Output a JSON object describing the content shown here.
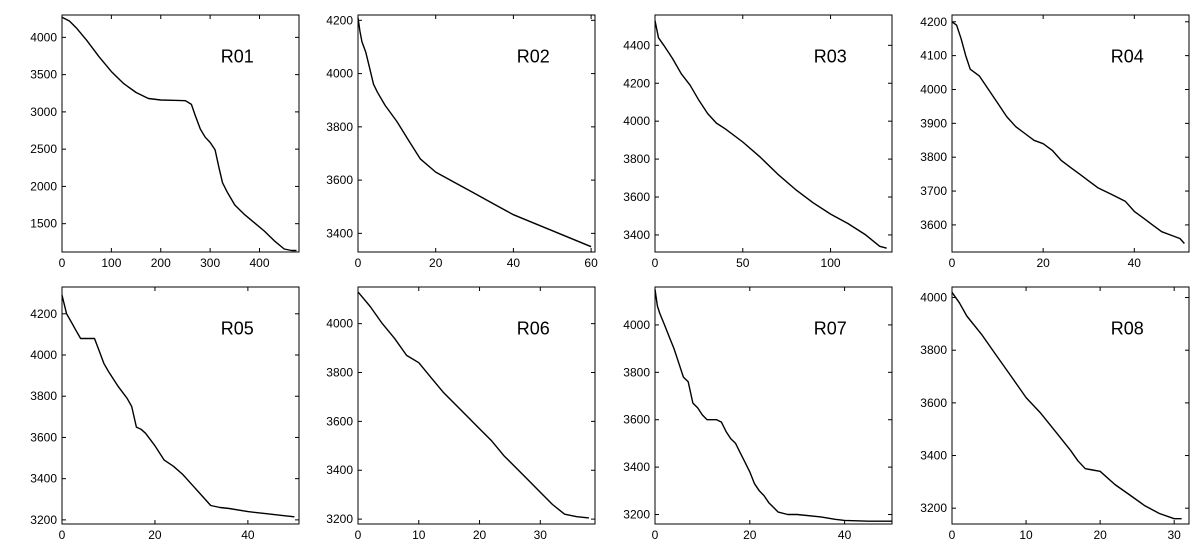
{
  "chart_data": [
    {
      "type": "line",
      "label": "R01",
      "xlim": [
        0,
        480
      ],
      "ylim": [
        1120,
        4300
      ],
      "xticks": [
        0,
        100,
        200,
        300,
        400
      ],
      "yticks": [
        1500,
        2000,
        2500,
        3000,
        3500,
        4000
      ],
      "series": [
        {
          "x": [
            0,
            15,
            30,
            50,
            75,
            100,
            125,
            150,
            175,
            200,
            225,
            250,
            262,
            270,
            280,
            290,
            300,
            310,
            318,
            325,
            335,
            350,
            370,
            390,
            410,
            430,
            450,
            465,
            475
          ],
          "y": [
            4270,
            4220,
            4120,
            3960,
            3740,
            3540,
            3380,
            3260,
            3180,
            3160,
            3155,
            3150,
            3100,
            2950,
            2770,
            2660,
            2590,
            2490,
            2250,
            2050,
            1920,
            1750,
            1620,
            1510,
            1400,
            1270,
            1160,
            1140,
            1140
          ]
        }
      ]
    },
    {
      "type": "line",
      "label": "R02",
      "xlim": [
        0,
        61
      ],
      "ylim": [
        3330,
        4220
      ],
      "xticks": [
        0,
        20,
        40,
        60
      ],
      "yticks": [
        3400,
        3600,
        3800,
        4000,
        4200
      ],
      "series": [
        {
          "x": [
            0,
            0.5,
            1,
            2,
            3,
            4,
            5,
            7,
            10,
            13,
            16,
            20,
            25,
            30,
            35,
            40,
            45,
            50,
            55,
            60
          ],
          "y": [
            4210,
            4160,
            4120,
            4080,
            4020,
            3960,
            3930,
            3880,
            3820,
            3750,
            3680,
            3630,
            3590,
            3550,
            3510,
            3470,
            3440,
            3410,
            3380,
            3350
          ]
        }
      ]
    },
    {
      "type": "line",
      "label": "R03",
      "xlim": [
        0,
        135
      ],
      "ylim": [
        3310,
        4560
      ],
      "xticks": [
        0,
        50,
        100
      ],
      "yticks": [
        3400,
        3600,
        3800,
        4000,
        4200,
        4400
      ],
      "series": [
        {
          "x": [
            0,
            2,
            5,
            10,
            15,
            20,
            25,
            30,
            35,
            40,
            50,
            60,
            70,
            80,
            90,
            100,
            110,
            120,
            128,
            132
          ],
          "y": [
            4530,
            4440,
            4400,
            4330,
            4250,
            4190,
            4110,
            4040,
            3990,
            3960,
            3890,
            3810,
            3720,
            3640,
            3570,
            3510,
            3460,
            3400,
            3340,
            3330
          ]
        }
      ]
    },
    {
      "type": "line",
      "label": "R04",
      "xlim": [
        0,
        52
      ],
      "ylim": [
        3520,
        4220
      ],
      "xticks": [
        0,
        20,
        40
      ],
      "yticks": [
        3600,
        3700,
        3800,
        3900,
        4000,
        4100,
        4200
      ],
      "series": [
        {
          "x": [
            0,
            1,
            2,
            3,
            4,
            6,
            8,
            10,
            12,
            14,
            16,
            18,
            20,
            22,
            24,
            26,
            28,
            30,
            32,
            35,
            38,
            40,
            42,
            44,
            46,
            48,
            50,
            51
          ],
          "y": [
            4200,
            4190,
            4150,
            4100,
            4060,
            4040,
            4000,
            3960,
            3920,
            3890,
            3870,
            3850,
            3840,
            3820,
            3790,
            3770,
            3750,
            3730,
            3710,
            3690,
            3670,
            3640,
            3620,
            3600,
            3580,
            3570,
            3560,
            3545
          ]
        }
      ]
    },
    {
      "type": "line",
      "label": "R05",
      "xlim": [
        0,
        51
      ],
      "ylim": [
        3180,
        4330
      ],
      "xticks": [
        0,
        20,
        40
      ],
      "yticks": [
        3200,
        3400,
        3600,
        3800,
        4000,
        4200
      ],
      "series": [
        {
          "x": [
            0,
            1,
            2,
            3,
            4,
            6,
            7,
            8,
            9,
            10,
            12,
            14,
            15,
            16,
            17,
            18,
            20,
            22,
            24,
            26,
            28,
            30,
            32,
            34,
            36,
            40,
            44,
            48,
            50
          ],
          "y": [
            4290,
            4200,
            4160,
            4120,
            4080,
            4080,
            4080,
            4020,
            3960,
            3920,
            3850,
            3790,
            3750,
            3650,
            3640,
            3620,
            3560,
            3490,
            3460,
            3420,
            3370,
            3320,
            3270,
            3260,
            3255,
            3240,
            3230,
            3220,
            3215
          ]
        }
      ]
    },
    {
      "type": "line",
      "label": "R06",
      "xlim": [
        0,
        39
      ],
      "ylim": [
        3180,
        4150
      ],
      "xticks": [
        0,
        10,
        20,
        30
      ],
      "yticks": [
        3200,
        3400,
        3600,
        3800,
        4000
      ],
      "series": [
        {
          "x": [
            0,
            1,
            2,
            4,
            6,
            8,
            10,
            12,
            14,
            16,
            18,
            20,
            22,
            24,
            26,
            28,
            30,
            32,
            34,
            36,
            38
          ],
          "y": [
            4130,
            4100,
            4070,
            4000,
            3940,
            3870,
            3840,
            3780,
            3720,
            3670,
            3620,
            3570,
            3520,
            3460,
            3410,
            3360,
            3310,
            3260,
            3220,
            3210,
            3205
          ]
        }
      ]
    },
    {
      "type": "line",
      "label": "R07",
      "xlim": [
        0,
        50
      ],
      "ylim": [
        3160,
        4160
      ],
      "xticks": [
        0,
        20,
        40
      ],
      "yticks": [
        3200,
        3400,
        3600,
        3800,
        4000
      ],
      "series": [
        {
          "x": [
            0,
            0.5,
            1,
            2,
            3,
            4,
            5,
            6,
            7,
            8,
            9,
            10,
            11,
            12,
            13,
            14,
            15,
            16,
            17,
            18,
            19,
            20,
            21,
            22,
            23,
            24,
            25,
            26,
            28,
            30,
            35,
            38,
            40,
            45,
            50
          ],
          "y": [
            4150,
            4080,
            4050,
            4000,
            3950,
            3900,
            3840,
            3780,
            3760,
            3670,
            3650,
            3620,
            3600,
            3600,
            3600,
            3590,
            3550,
            3520,
            3500,
            3460,
            3420,
            3380,
            3330,
            3300,
            3280,
            3250,
            3230,
            3210,
            3200,
            3200,
            3190,
            3180,
            3175,
            3172,
            3172
          ]
        }
      ]
    },
    {
      "type": "line",
      "label": "R08",
      "xlim": [
        0,
        32
      ],
      "ylim": [
        3140,
        4040
      ],
      "xticks": [
        0,
        10,
        20,
        30
      ],
      "yticks": [
        3200,
        3400,
        3600,
        3800,
        4000
      ],
      "series": [
        {
          "x": [
            0,
            1,
            2,
            4,
            6,
            8,
            10,
            12,
            14,
            16,
            17,
            18,
            19,
            20,
            22,
            24,
            26,
            28,
            30,
            31
          ],
          "y": [
            4020,
            3980,
            3930,
            3860,
            3780,
            3700,
            3620,
            3560,
            3490,
            3420,
            3380,
            3350,
            3345,
            3340,
            3290,
            3250,
            3210,
            3180,
            3160,
            3160
          ]
        }
      ]
    }
  ]
}
